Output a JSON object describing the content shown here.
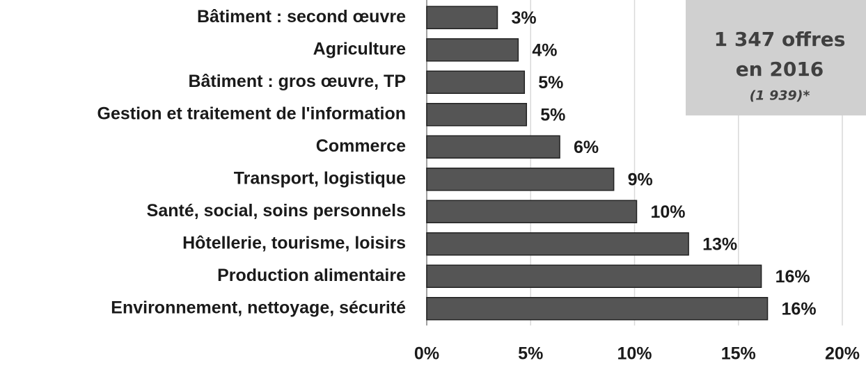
{
  "chart_data": {
    "type": "barh",
    "categories": [
      "Bâtiment : second œuvre",
      "Agriculture",
      "Bâtiment : gros œuvre, TP",
      "Gestion et traitement de l'information",
      "Commerce",
      "Transport, logistique",
      "Santé, social, soins personnels",
      "Hôtellerie, tourisme, loisirs",
      "Production alimentaire",
      "Environnement, nettoyage, sécurité"
    ],
    "values": [
      3.4,
      4.4,
      4.7,
      4.8,
      6.4,
      9.0,
      10.1,
      12.6,
      16.1,
      16.4
    ],
    "value_labels": [
      "3%",
      "4%",
      "5%",
      "5%",
      "6%",
      "9%",
      "10%",
      "13%",
      "16%",
      "16%"
    ],
    "color": "#555555",
    "xlim": [
      0,
      20
    ],
    "xticks": [
      {
        "value": 0,
        "label": "0%"
      },
      {
        "value": 5,
        "label": "5%"
      },
      {
        "value": 10,
        "label": "10%"
      },
      {
        "value": 15,
        "label": "15%"
      },
      {
        "value": 20,
        "label": "20%"
      }
    ],
    "grid": true,
    "annotation": {
      "line1": "1 347 offres",
      "line2": "en 2016",
      "line3": "(1 939)*"
    }
  }
}
